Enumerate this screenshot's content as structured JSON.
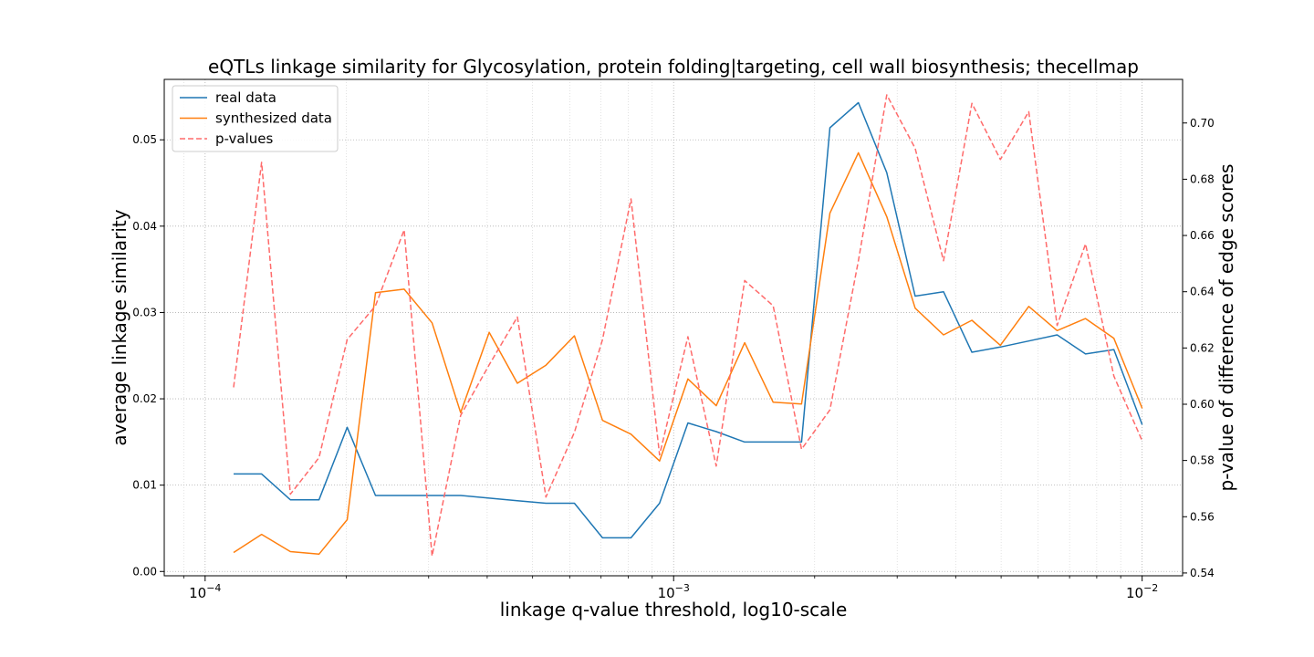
{
  "chart_data": {
    "type": "line",
    "title": "eQTLs linkage similarity for Glycosylation, protein folding|targeting, cell wall biosynthesis; thecellmap",
    "xlabel": "linkage q-value threshold, log10-scale",
    "ylabel": "average linkage similarity",
    "y2label": "p-value of difference of edge scores",
    "xscale": "log",
    "xlim": [
      8.18e-05,
      0.0122
    ],
    "ylim": [
      -0.0005,
      0.057
    ],
    "y2lim": [
      0.539,
      0.7155
    ],
    "grid": true,
    "legend_position": "top-left",
    "x_ticks": [
      0.0001,
      0.001,
      0.01
    ],
    "x_tick_labels": [
      {
        "base": "10",
        "exp": "−4"
      },
      {
        "base": "10",
        "exp": "−3"
      },
      {
        "base": "10",
        "exp": "−2"
      }
    ],
    "y_ticks": [
      0.0,
      0.01,
      0.02,
      0.03,
      0.04,
      0.05
    ],
    "y_tick_labels": [
      "0.00",
      "0.01",
      "0.02",
      "0.03",
      "0.04",
      "0.05"
    ],
    "y2_ticks": [
      0.54,
      0.56,
      0.58,
      0.6,
      0.62,
      0.64,
      0.66,
      0.68,
      0.7
    ],
    "y2_tick_labels": [
      "0.54",
      "0.56",
      "0.58",
      "0.60",
      "0.62",
      "0.64",
      "0.66",
      "0.68",
      "0.70"
    ],
    "x": [
      0.000115,
      0.000132,
      0.000152,
      0.000175,
      0.000201,
      0.000231,
      0.000266,
      0.000305,
      0.000351,
      0.000404,
      0.000464,
      0.000534,
      0.000614,
      0.000705,
      0.000811,
      0.000933,
      0.001073,
      0.001233,
      0.001418,
      0.001631,
      0.001875,
      0.002156,
      0.002479,
      0.00285,
      0.003277,
      0.003768,
      0.004332,
      0.004981,
      0.005727,
      0.006585,
      0.007571,
      0.008705,
      0.01
    ],
    "series": [
      {
        "name": "real data",
        "axis": "left",
        "color": "#1f77b4",
        "style": "solid",
        "values": [
          0.0113,
          0.0113,
          0.0083,
          0.0083,
          0.0167,
          0.0088,
          0.0088,
          0.0088,
          0.0088,
          0.0085,
          0.0082,
          0.0079,
          0.0079,
          0.0039,
          0.0039,
          0.0079,
          0.0172,
          0.0162,
          0.015,
          0.015,
          0.015,
          0.0514,
          0.0543,
          0.0462,
          0.0319,
          0.0324,
          0.0254,
          0.026,
          0.0267,
          0.0274,
          0.0252,
          0.0257,
          0.017
        ]
      },
      {
        "name": "synthesized data",
        "axis": "left",
        "color": "#ff7f0e",
        "style": "solid",
        "values": [
          0.0022,
          0.0043,
          0.0023,
          0.002,
          0.006,
          0.0323,
          0.0327,
          0.0288,
          0.0184,
          0.0277,
          0.0218,
          0.0239,
          0.0273,
          0.0175,
          0.0159,
          0.0128,
          0.0223,
          0.0192,
          0.0265,
          0.0196,
          0.0194,
          0.0415,
          0.0485,
          0.0411,
          0.0305,
          0.0274,
          0.0291,
          0.0262,
          0.0307,
          0.0279,
          0.0293,
          0.027,
          0.0189
        ]
      },
      {
        "name": "p-values",
        "axis": "right",
        "color": "#ff6b6b",
        "style": "dashed",
        "values": [
          0.606,
          0.686,
          0.568,
          0.581,
          0.623,
          0.635,
          0.662,
          0.546,
          0.596,
          0.614,
          0.631,
          0.567,
          0.59,
          0.623,
          0.673,
          0.582,
          0.624,
          0.578,
          0.644,
          0.635,
          0.584,
          0.598,
          0.651,
          0.71,
          0.691,
          0.651,
          0.707,
          0.687,
          0.704,
          0.628,
          0.657,
          0.61,
          0.587
        ]
      }
    ]
  }
}
